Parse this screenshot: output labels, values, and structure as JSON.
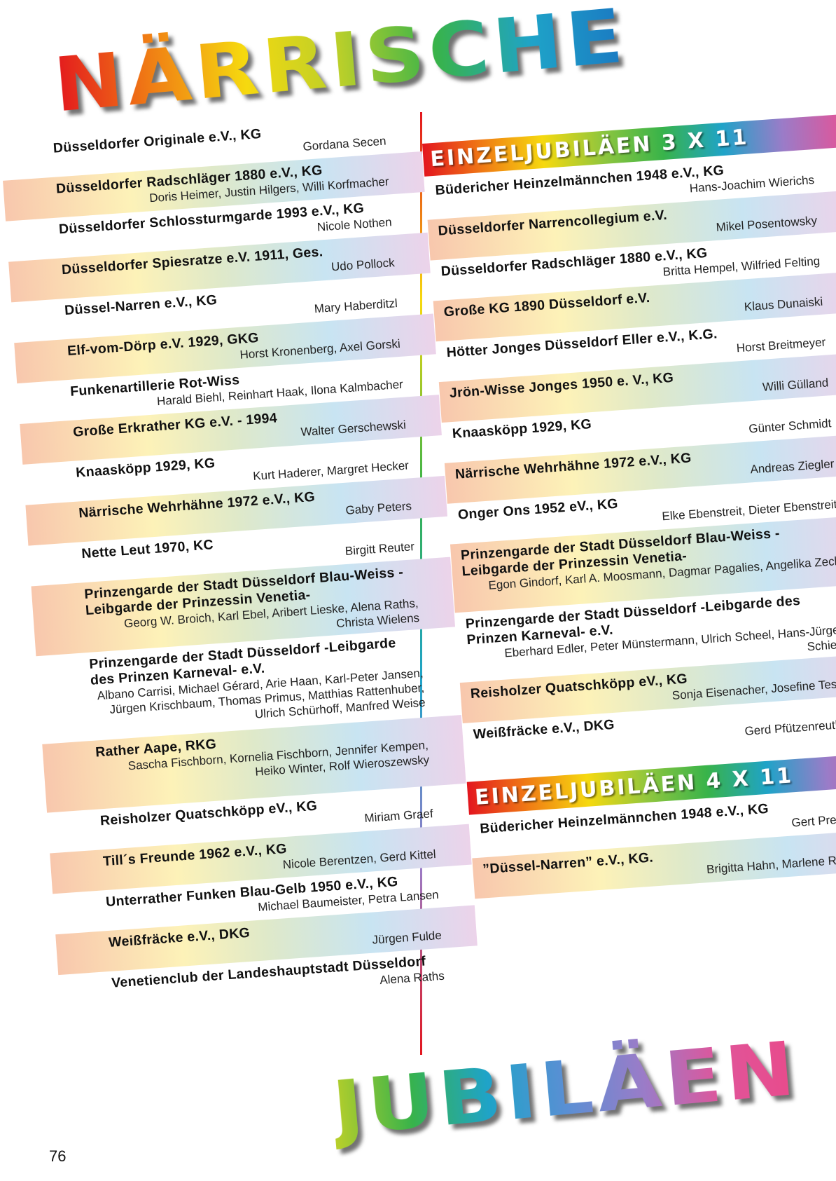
{
  "title_top": "NÄRRISCHE",
  "title_bottom": "JUBILÄEN",
  "page_number": "76",
  "left": [
    {
      "name": "Düsseldorfer Originale e.V., KG",
      "people": "Gordana Secen"
    },
    {
      "name": "Düsseldorfer Radschläger 1880 e.V., KG",
      "people": "Doris Heimer, Justin Hilgers, Willi Korfmacher"
    },
    {
      "name": "Düsseldorfer Schlossturmgarde 1993 e.V., KG",
      "people": "Nicole Nothen"
    },
    {
      "name": "Düsseldorfer Spiesratze e.V. 1911, Ges.",
      "people": "Udo Pollock"
    },
    {
      "name": "Düssel-Narren e.V., KG",
      "people": "Mary Haberditzl"
    },
    {
      "name": "Elf-vom-Dörp e.V. 1929, GKG",
      "people": "Horst Kronenberg, Axel Gorski"
    },
    {
      "name": "Funkenartillerie Rot-Wiss",
      "people": "Harald Biehl, Reinhart Haak, Ilona Kalmbacher"
    },
    {
      "name": "Große Erkrather KG e.V. - 1994",
      "people": "Walter Gerschewski"
    },
    {
      "name": "Knaasköpp 1929, KG",
      "people": "Kurt Haderer, Margret Hecker"
    },
    {
      "name": "Närrische Wehrhähne 1972 e.V., KG",
      "people": "Gaby Peters"
    },
    {
      "name": "Nette Leut 1970, KC",
      "people": "Birgitt Reuter"
    },
    {
      "name": "Prinzengarde der Stadt Düsseldorf Blau-Weiss -Leibgarde der Prinzessin Venetia-",
      "people": "Georg W. Broich, Karl Ebel, Aribert Lieske, Alena Raths, Christa Wielens"
    },
    {
      "name": "Prinzengarde der Stadt Düsseldorf -Leibgarde des Prinzen Karneval- e.V.",
      "people": "Albano Carrisi, Michael Gérard, Arie Haan, Karl-Peter Jansen, Jürgen Krischbaum, Thomas Primus, Matthias Rattenhuber, Ulrich Schürhoff, Manfred Weise"
    },
    {
      "name": "Rather Aape, RKG",
      "people": "Sascha Fischborn, Kornelia Fischborn, Jennifer Kempen, Heiko Winter, Rolf Wieroszewsky"
    },
    {
      "name": "Reisholzer Quatschköpp eV., KG",
      "people": "Miriam Graef"
    },
    {
      "name": "Till´s Freunde 1962 e.V., KG",
      "people": "Nicole Berentzen, Gerd Kittel"
    },
    {
      "name": "Unterrather Funken Blau-Gelb 1950 e.V., KG",
      "people": "Michael Baumeister, Petra Lansen"
    },
    {
      "name": "Weißfräcke e.V., DKG",
      "people": "Jürgen Fulde"
    },
    {
      "name": "Venetienclub der Landeshauptstadt Düsseldorf",
      "people": "Alena Raths"
    }
  ],
  "section_3x11": {
    "heading": "EINZELJUBILÄEN 3 X 11",
    "entries": [
      {
        "name": "Büdericher Heinzelmännchen 1948 e.V., KG",
        "people": "Hans-Joachim Wierichs"
      },
      {
        "name": "Düsseldorfer Narrencollegium e.V.",
        "people": "Mikel Posentowsky"
      },
      {
        "name": "Düsseldorfer Radschläger 1880 e.V., KG",
        "people": "Britta Hempel, Wilfried Felting"
      },
      {
        "name": "Große KG 1890 Düsseldorf e.V.",
        "people": "Klaus Dunaiski"
      },
      {
        "name": "Hötter Jonges Düsseldorf Eller e.V., K.G.",
        "people": "Horst Breitmeyer"
      },
      {
        "name": "Jrön-Wisse Jonges 1950 e. V., KG",
        "people": "Willi Gülland"
      },
      {
        "name": "Knaasköpp 1929, KG",
        "people": "Günter Schmidt"
      },
      {
        "name": "Närrische Wehrhähne 1972 e.V., KG",
        "people": "Andreas Ziegler"
      },
      {
        "name": "Onger Ons 1952 eV., KG",
        "people": "Elke Ebenstreit, Dieter Ebenstreit"
      },
      {
        "name": "Prinzengarde der Stadt Düsseldorf Blau-Weiss -Leibgarde der Prinzessin Venetia-",
        "people": "Egon Gindorf, Karl A. Moosmann, Dagmar Pagalies, Angelika Zech"
      },
      {
        "name": "Prinzengarde der Stadt Düsseldorf -Leibgarde des Prinzen Karneval- e.V.",
        "people": "Eberhard Edler, Peter Münstermann, Ulrich Scheel, Hans-Jürgen Schierz"
      },
      {
        "name": "Reisholzer Quatschköpp eV., KG",
        "people": "Sonja Eisenacher, Josefine Tesch"
      },
      {
        "name": "Weißfräcke e.V., DKG",
        "people": "Gerd Pfützenreuther"
      }
    ]
  },
  "section_4x11": {
    "heading": "EINZELJUBILÄEN 4 X 11",
    "entries": [
      {
        "name": "Büdericher Heinzelmännchen 1948 e.V., KG",
        "people": "Gert Presser"
      },
      {
        "name": "”Düssel-Narren” e.V., KG.",
        "people": "Brigitta Hahn, Marlene Riedel"
      }
    ]
  }
}
